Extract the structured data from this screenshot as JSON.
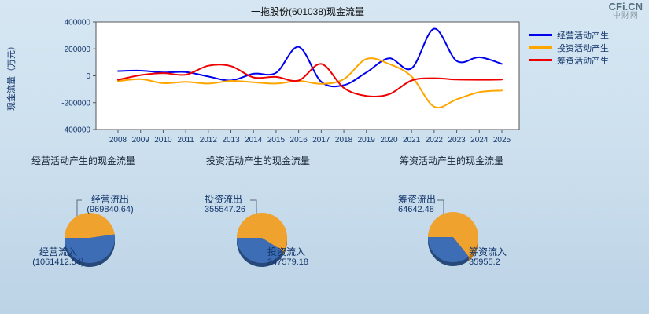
{
  "watermark": {
    "brand": "CFi.CN",
    "subbrand": "中财网"
  },
  "chart_data": {
    "type": "line",
    "title": "一拖股份(601038)现金流量",
    "ylabel": "现金流量（万元）",
    "ylim": [
      -400000,
      400000
    ],
    "yticks": [
      400000,
      200000,
      0,
      -200000,
      -400000
    ],
    "categories": [
      "2008",
      "2009",
      "2010",
      "2011",
      "2012",
      "2013",
      "2014",
      "2015",
      "2016",
      "2017",
      "2018",
      "2019",
      "2020",
      "2021",
      "2022",
      "2023",
      "2024",
      "2025"
    ],
    "legend_position": "top-right",
    "grid": false,
    "series": [
      {
        "name": "经营活动产生",
        "color": "#0000ee",
        "values": [
          35000,
          38000,
          25000,
          28000,
          -5000,
          -35000,
          15000,
          22000,
          215000,
          -45000,
          -70000,
          25000,
          130000,
          55000,
          350000,
          110000,
          138000,
          88000
        ]
      },
      {
        "name": "投资活动产生",
        "color": "#ffa500",
        "values": [
          -40000,
          -25000,
          -55000,
          -45000,
          -58000,
          -38000,
          -48000,
          -58000,
          -38000,
          -60000,
          -25000,
          125000,
          88000,
          -5000,
          -230000,
          -175000,
          -122000,
          -110000
        ]
      },
      {
        "name": "筹资活动产生",
        "color": "#ee0000",
        "values": [
          -30000,
          5000,
          20000,
          8000,
          75000,
          72000,
          -12000,
          -8000,
          -35000,
          88000,
          -90000,
          -150000,
          -138000,
          -35000,
          -18000,
          -28000,
          -30000,
          -28000
        ]
      }
    ]
  },
  "pies": [
    {
      "section_title": "经营活动产生的现金流量",
      "outflow_label": "经营流出",
      "outflow_display": "(969840.64)",
      "outflow_value": 969840.64,
      "inflow_label": "经营流入",
      "inflow_display": "(1061412.54)",
      "inflow_value": 1061412.54
    },
    {
      "section_title": "投资活动产生的现金流量",
      "outflow_label": "投资流出",
      "outflow_display": "355547.26",
      "outflow_value": 355547.26,
      "inflow_label": "投资流入",
      "inflow_display": "247579.18",
      "inflow_value": 247579.18
    },
    {
      "section_title": "筹资活动产生的现金流量",
      "outflow_label": "筹资流出",
      "outflow_display": "64642.48",
      "outflow_value": 64642.48,
      "inflow_label": "筹资流入",
      "inflow_display": "35955.2",
      "inflow_value": 35955.2
    }
  ],
  "colors": {
    "page_bg_top": "#d6e7f3",
    "page_bg_bottom": "#bcd3e6",
    "plot_bg": "#ffffff",
    "axis": "#555555",
    "text_navy": "#14366b",
    "title_text": "#111111",
    "pie_inflow": "#3d6eb5",
    "pie_inflow_dark": "#27497a",
    "pie_outflow": "#f0a22e",
    "pie_outflow_dark": "#b5741a",
    "leader_line": "#5a6b7a",
    "brand_primary": "#546e7d",
    "brand_secondary": "#8a9aa5"
  }
}
